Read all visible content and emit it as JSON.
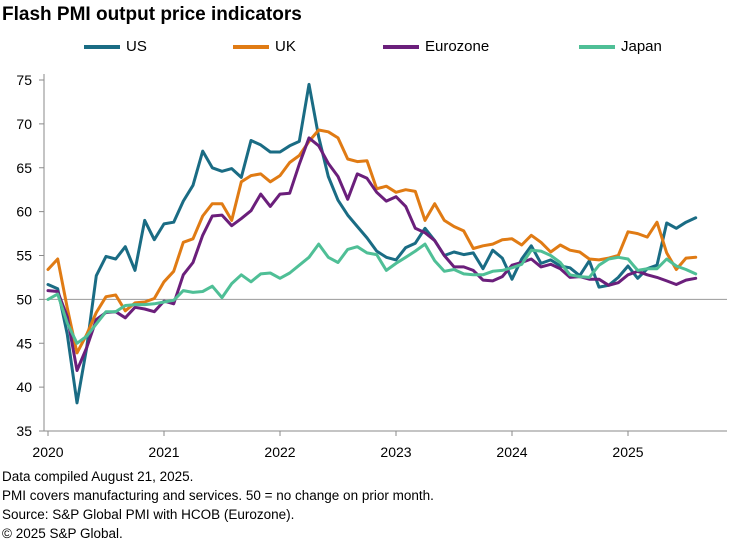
{
  "title": "Flash PMI output price indicators",
  "footnotes": [
    "Data compiled August 21, 2025.",
    "PMI covers manufacturing and services. 50 = no change on prior month.",
    "Source: S&P Global PMI with HCOB (Eurozone).",
    "© 2025 S&P Global."
  ],
  "chart_data": {
    "type": "line",
    "title": "Flash PMI output price indicators",
    "xlabel": "",
    "ylabel": "",
    "ylim": [
      35,
      75
    ],
    "yticks": [
      35,
      40,
      45,
      50,
      55,
      60,
      65,
      70,
      75
    ],
    "xticks": [
      "2020",
      "2021",
      "2022",
      "2023",
      "2024",
      "2025"
    ],
    "x_start": "2020-01",
    "x_end": "2025-08",
    "grid": false,
    "reference_line": 50,
    "legend_position": "top",
    "series": [
      {
        "name": "US",
        "color": "#1a6c84",
        "values": [
          51.7,
          51.2,
          46.0,
          38.2,
          44.5,
          52.7,
          54.9,
          54.6,
          56.0,
          53.3,
          59.0,
          56.8,
          58.6,
          58.8,
          61.2,
          63.0,
          66.9,
          65.0,
          64.6,
          64.9,
          63.9,
          68.1,
          67.6,
          66.8,
          66.8,
          67.5,
          68.0,
          74.5,
          68.5,
          64.0,
          61.3,
          59.6,
          58.3,
          57.0,
          55.5,
          54.8,
          54.5,
          55.9,
          56.4,
          58.1,
          56.7,
          55.0,
          55.4,
          55.1,
          55.3,
          53.5,
          55.6,
          54.7,
          52.3,
          54.6,
          56.1,
          54.1,
          54.5,
          53.8,
          53.6,
          52.7,
          54.4,
          51.4,
          51.6,
          52.5,
          53.8,
          52.4,
          53.5,
          53.9,
          58.7,
          58.1,
          58.8,
          59.3
        ]
      },
      {
        "name": "UK",
        "color": "#e07b14",
        "values": [
          53.4,
          54.6,
          49.0,
          43.9,
          46.0,
          48.5,
          50.3,
          50.5,
          48.7,
          49.6,
          49.7,
          50.1,
          52.0,
          53.2,
          56.5,
          56.9,
          59.5,
          60.9,
          60.9,
          59.0,
          63.4,
          64.1,
          64.3,
          63.4,
          64.1,
          65.6,
          66.4,
          68.0,
          69.3,
          69.1,
          68.4,
          66.0,
          65.7,
          65.8,
          62.6,
          62.9,
          62.2,
          62.5,
          62.3,
          59.0,
          60.9,
          59.0,
          58.3,
          57.8,
          55.8,
          56.1,
          56.3,
          56.8,
          56.9,
          56.2,
          57.3,
          56.5,
          55.4,
          56.2,
          55.6,
          55.4,
          54.6,
          54.5,
          54.7,
          55.0,
          57.7,
          57.5,
          57.1,
          58.8,
          55.3,
          53.4,
          54.7,
          54.8
        ]
      },
      {
        "name": "Eurozone",
        "color": "#6b1f7b",
        "values": [
          51.0,
          50.9,
          48.0,
          41.9,
          44.5,
          47.7,
          48.5,
          48.6,
          47.9,
          49.1,
          48.9,
          48.6,
          49.8,
          49.5,
          52.8,
          54.2,
          57.3,
          59.5,
          59.6,
          58.4,
          59.2,
          60.1,
          62.0,
          60.6,
          62.0,
          62.1,
          65.4,
          68.4,
          67.5,
          65.5,
          64.0,
          61.4,
          64.3,
          63.8,
          62.2,
          61.2,
          61.7,
          60.6,
          58.1,
          57.6,
          56.7,
          55.0,
          53.7,
          53.7,
          53.3,
          52.2,
          52.1,
          52.6,
          53.9,
          54.2,
          54.6,
          53.7,
          54.0,
          53.5,
          52.5,
          52.6,
          52.3,
          52.3,
          51.6,
          51.9,
          52.8,
          53.2,
          52.8,
          52.5,
          52.1,
          51.7,
          52.2,
          52.4
        ]
      },
      {
        "name": "Japan",
        "color": "#4fbf96",
        "values": [
          50.0,
          50.6,
          47.3,
          45.0,
          45.8,
          47.2,
          48.6,
          48.6,
          49.3,
          49.4,
          49.4,
          49.5,
          49.7,
          49.9,
          51.0,
          50.8,
          50.9,
          51.5,
          50.2,
          51.8,
          52.8,
          52.0,
          52.9,
          53.0,
          52.4,
          53.0,
          53.9,
          54.8,
          56.3,
          54.8,
          54.2,
          55.7,
          56.0,
          55.3,
          55.1,
          53.3,
          54.1,
          54.8,
          55.5,
          56.3,
          54.4,
          53.2,
          53.4,
          52.9,
          52.8,
          52.8,
          53.2,
          53.3,
          53.6,
          54.0,
          55.6,
          55.5,
          55.0,
          54.2,
          52.8,
          52.6,
          52.5,
          53.9,
          54.6,
          54.8,
          54.6,
          53.3,
          53.5,
          53.5,
          54.6,
          53.8,
          53.4,
          52.9
        ]
      }
    ]
  }
}
